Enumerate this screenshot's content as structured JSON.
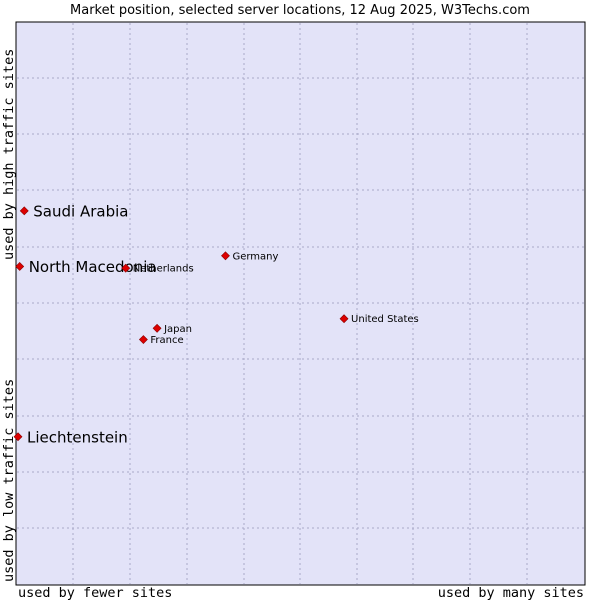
{
  "chart_data": {
    "type": "scatter",
    "title": "Market position, selected server locations, 12 Aug 2025, W3Techs.com",
    "xlabel_left": "used by fewer sites",
    "xlabel_right": "used by many sites",
    "ylabel_bottom": "used by low traffic sites",
    "ylabel_top": "used by high traffic sites",
    "grid": true,
    "colors": {
      "plot_background": "#e3e3f8",
      "grid": "#a8a8c8",
      "marker": "#dd0000"
    },
    "points": [
      {
        "name": "Saudi Arabia",
        "x": 0.011,
        "y": 0.664,
        "emphasis": true
      },
      {
        "name": "North Macedonia",
        "x": 0.003,
        "y": 0.565,
        "emphasis": true
      },
      {
        "name": "Liechtenstein",
        "x": 0.0,
        "y": 0.262,
        "emphasis": true
      },
      {
        "name": "Netherlands",
        "x": 0.189,
        "y": 0.562,
        "emphasis": false
      },
      {
        "name": "Germany",
        "x": 0.364,
        "y": 0.584,
        "emphasis": false
      },
      {
        "name": "United States",
        "x": 0.572,
        "y": 0.472,
        "emphasis": false
      },
      {
        "name": "Japan",
        "x": 0.244,
        "y": 0.455,
        "emphasis": false
      },
      {
        "name": "France",
        "x": 0.22,
        "y": 0.435,
        "emphasis": false
      }
    ]
  }
}
